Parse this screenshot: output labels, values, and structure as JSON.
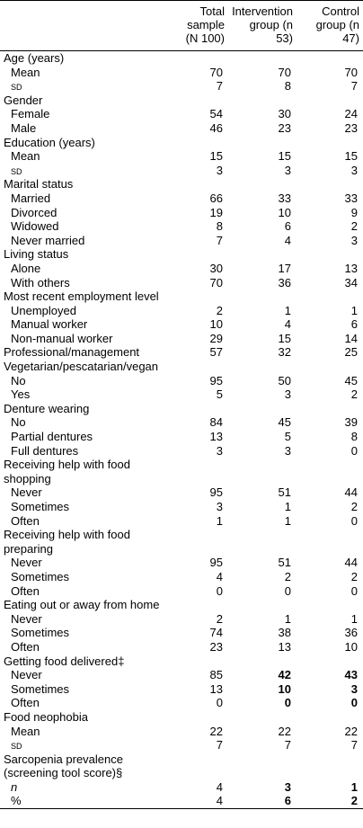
{
  "table": {
    "columns": [
      "Total sample (N 100)",
      "Intervention group (n 53)",
      "Control group (n 47)"
    ],
    "rows": [
      {
        "label": "Age (years)"
      },
      {
        "label": "Mean",
        "indent": true,
        "values": [
          70,
          70,
          70
        ]
      },
      {
        "label": "SD",
        "indent": true,
        "smallcaps": true,
        "values": [
          7,
          8,
          7
        ]
      },
      {
        "label": "Gender"
      },
      {
        "label": "Female",
        "indent": true,
        "values": [
          54,
          30,
          24
        ]
      },
      {
        "label": "Male",
        "indent": true,
        "values": [
          46,
          23,
          23
        ]
      },
      {
        "label": "Education (years)"
      },
      {
        "label": "Mean",
        "indent": true,
        "values": [
          15,
          15,
          15
        ]
      },
      {
        "label": "SD",
        "indent": true,
        "smallcaps": true,
        "values": [
          3,
          3,
          3
        ]
      },
      {
        "label": "Marital status"
      },
      {
        "label": "Married",
        "indent": true,
        "values": [
          66,
          33,
          33
        ]
      },
      {
        "label": "Divorced",
        "indent": true,
        "values": [
          19,
          10,
          9
        ]
      },
      {
        "label": "Widowed",
        "indent": true,
        "values": [
          8,
          6,
          2
        ]
      },
      {
        "label": "Never married",
        "indent": true,
        "values": [
          7,
          4,
          3
        ]
      },
      {
        "label": "Living status"
      },
      {
        "label": "Alone",
        "indent": true,
        "values": [
          30,
          17,
          13
        ]
      },
      {
        "label": "With others",
        "indent": true,
        "values": [
          70,
          36,
          34
        ]
      },
      {
        "label": "Most recent employment level"
      },
      {
        "label": "Unemployed",
        "indent": true,
        "values": [
          2,
          1,
          1
        ]
      },
      {
        "label": "Manual worker",
        "indent": true,
        "values": [
          10,
          4,
          6
        ]
      },
      {
        "label": "Non-manual worker",
        "indent": true,
        "values": [
          29,
          15,
          14
        ]
      },
      {
        "label": "Professional/management",
        "values": [
          57,
          32,
          25
        ]
      },
      {
        "label": "Vegetarian/pescatarian/vegan"
      },
      {
        "label": "No",
        "indent": true,
        "values": [
          95,
          50,
          45
        ]
      },
      {
        "label": "Yes",
        "indent": true,
        "values": [
          5,
          3,
          2
        ]
      },
      {
        "label": "Denture wearing"
      },
      {
        "label": "No",
        "indent": true,
        "values": [
          84,
          45,
          39
        ]
      },
      {
        "label": "Partial dentures",
        "indent": true,
        "values": [
          13,
          5,
          8
        ]
      },
      {
        "label": "Full dentures",
        "indent": true,
        "values": [
          3,
          3,
          0
        ]
      },
      {
        "label": "Receiving help with food shopping"
      },
      {
        "label": "Never",
        "indent": true,
        "values": [
          95,
          51,
          44
        ]
      },
      {
        "label": "Sometimes",
        "indent": true,
        "values": [
          3,
          1,
          2
        ]
      },
      {
        "label": "Often",
        "indent": true,
        "values": [
          1,
          1,
          0
        ]
      },
      {
        "label": "Receiving help with food preparing"
      },
      {
        "label": "Never",
        "indent": true,
        "values": [
          95,
          51,
          44
        ]
      },
      {
        "label": "Sometimes",
        "indent": true,
        "values": [
          4,
          2,
          2
        ]
      },
      {
        "label": "Often",
        "indent": true,
        "values": [
          0,
          0,
          0
        ]
      },
      {
        "label": "Eating out or away from home"
      },
      {
        "label": "Never",
        "indent": true,
        "values": [
          2,
          1,
          1
        ]
      },
      {
        "label": "Sometimes",
        "indent": true,
        "values": [
          74,
          38,
          36
        ]
      },
      {
        "label": "Often",
        "indent": true,
        "values": [
          23,
          13,
          10
        ]
      },
      {
        "label": "Getting food delivered‡"
      },
      {
        "label": "Never",
        "indent": true,
        "values": [
          85,
          42,
          43
        ],
        "bold": [
          false,
          true,
          true
        ]
      },
      {
        "label": "Sometimes",
        "indent": true,
        "values": [
          13,
          10,
          3
        ],
        "bold": [
          false,
          true,
          true
        ]
      },
      {
        "label": "Often",
        "indent": true,
        "values": [
          0,
          0,
          0
        ],
        "bold": [
          false,
          true,
          true
        ]
      },
      {
        "label": "Food neophobia"
      },
      {
        "label": "Mean",
        "indent": true,
        "values": [
          22,
          22,
          22
        ]
      },
      {
        "label": "SD",
        "indent": true,
        "smallcaps": true,
        "values": [
          7,
          7,
          7
        ]
      },
      {
        "label": "Sarcopenia prevalence (screening tool score)§"
      },
      {
        "label": "n",
        "indent": true,
        "italic": true,
        "values": [
          4,
          3,
          1
        ],
        "bold": [
          false,
          true,
          true
        ]
      },
      {
        "label": "%",
        "indent": true,
        "values": [
          4,
          6,
          2
        ],
        "bold": [
          false,
          true,
          true
        ]
      }
    ]
  }
}
